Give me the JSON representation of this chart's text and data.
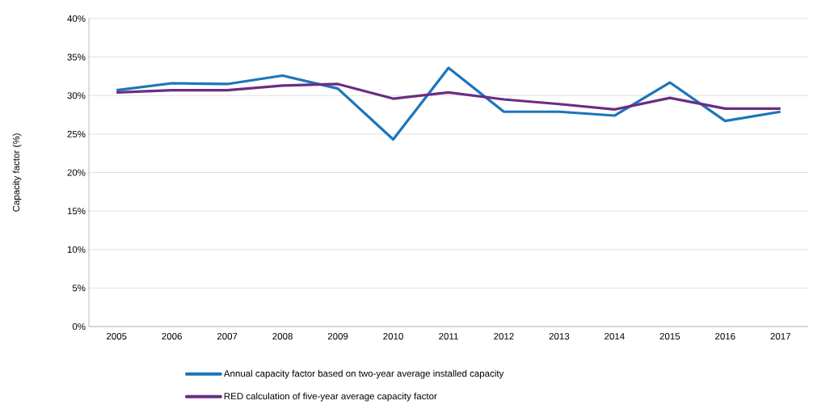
{
  "chart_data": {
    "type": "line",
    "ylabel": "Capacity factor (%)",
    "categories": [
      "2005",
      "2006",
      "2007",
      "2008",
      "2009",
      "2010",
      "2011",
      "2012",
      "2013",
      "2014",
      "2015",
      "2016",
      "2017"
    ],
    "series": [
      {
        "name": "Annual capacity factor based on two-year average installed capacity",
        "color": "#1b75bb",
        "values": [
          30.7,
          31.6,
          31.5,
          32.6,
          30.9,
          24.3,
          33.6,
          27.9,
          27.9,
          27.4,
          31.7,
          26.7,
          27.9
        ]
      },
      {
        "name": "RED calculation of five-year average capacity factor",
        "color": "#6b2c83",
        "values": [
          30.4,
          30.7,
          30.7,
          31.3,
          31.5,
          29.6,
          30.4,
          29.5,
          28.9,
          28.2,
          29.7,
          28.3,
          28.3
        ]
      }
    ],
    "ylim": [
      0,
      40
    ],
    "yticks": [
      {
        "value": 0,
        "label": "0%"
      },
      {
        "value": 5,
        "label": "5%"
      },
      {
        "value": 10,
        "label": "10%"
      },
      {
        "value": 15,
        "label": "15%"
      },
      {
        "value": 20,
        "label": "20%"
      },
      {
        "value": 25,
        "label": "25%"
      },
      {
        "value": 30,
        "label": "30%"
      },
      {
        "value": 35,
        "label": "35%"
      },
      {
        "value": 40,
        "label": "40%"
      }
    ],
    "grid": "y",
    "legend": "bottom",
    "marker": "none",
    "line_style": "solid"
  }
}
